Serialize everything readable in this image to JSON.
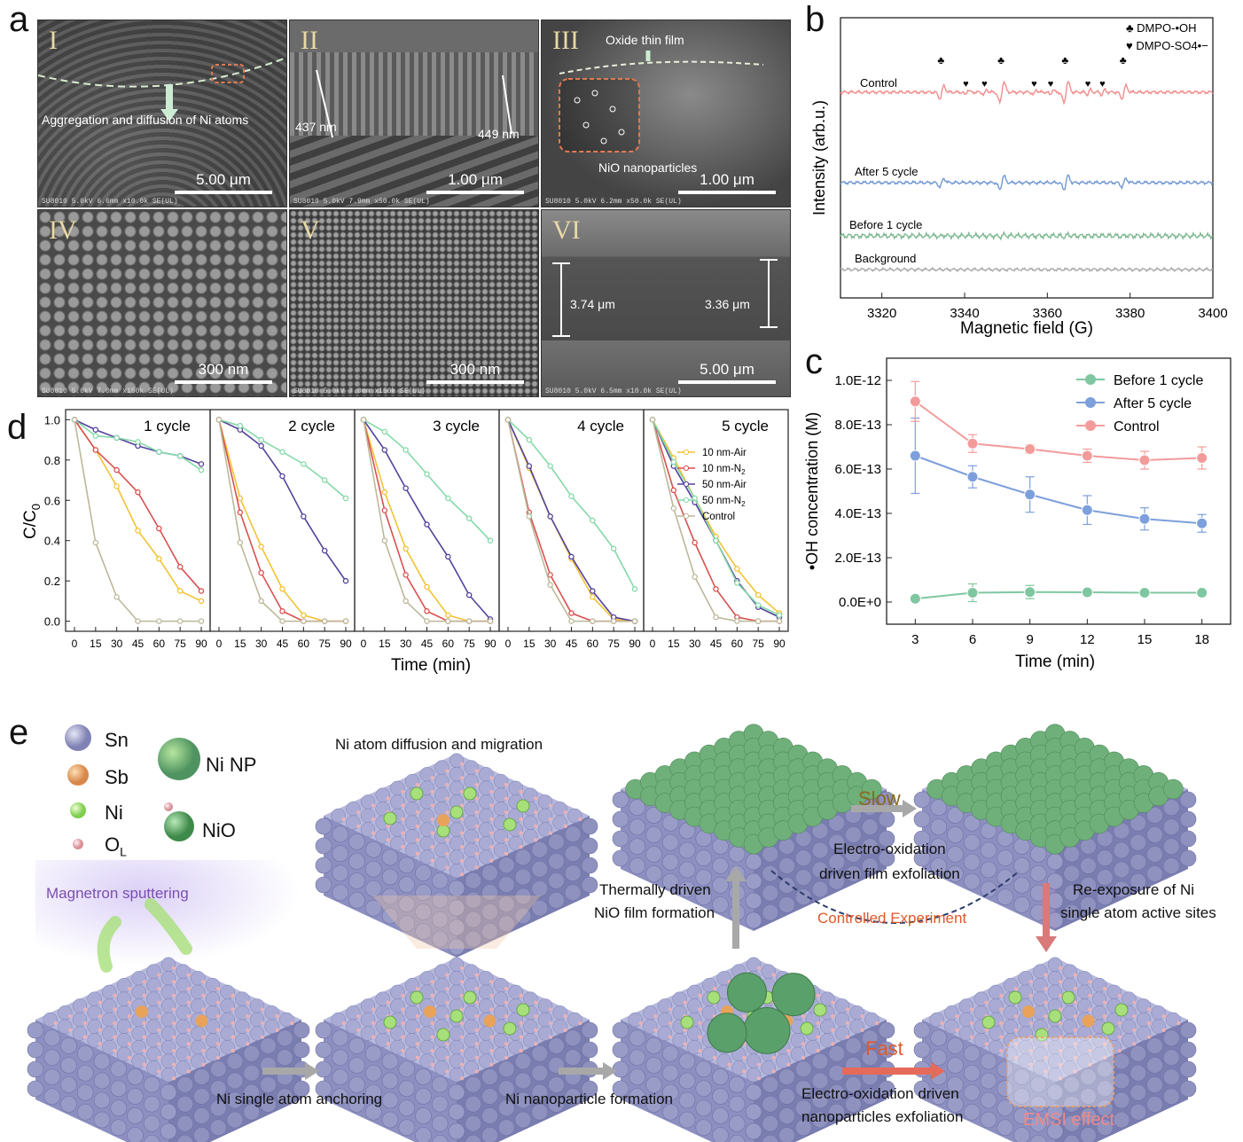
{
  "panels": {
    "a": "a",
    "b": "b",
    "c": "c",
    "d": "d",
    "e": "e"
  },
  "panel_a": {
    "tiles": [
      {
        "roman": "I",
        "scale": "5.00 μm",
        "meta": "SU8010 5.0kV 6.6mm x10.0k SE(UL)",
        "meta_right": "5.00um"
      },
      {
        "roman": "II",
        "scale": "1.00 μm",
        "meta": "SU8010 5.0kV 7.9mm x50.0k SE(UL)",
        "meta_right": "1.00um"
      },
      {
        "roman": "III",
        "scale": "1.00 μm",
        "meta": "SU8010 5.0kV 6.2mm x50.0k SE(UL)",
        "meta_right": "1.00um"
      },
      {
        "roman": "IV",
        "scale": "300 nm",
        "meta": "SU8010 5.0kV 7.0mm x150k SE(UL)",
        "meta_right": "300nm"
      },
      {
        "roman": "V",
        "scale": "300 nm",
        "meta": "SU8010 5.0kV 7.0mm x150k SE(UL)",
        "meta_right": "300nm"
      },
      {
        "roman": "VI",
        "scale": "5.00 μm",
        "meta": "SU8010 5.0kV 6.5mm x10.0k SE(UL)",
        "meta_right": "5.00um"
      }
    ],
    "annotations": {
      "agg": "Aggregation and diffusion of Ni atoms",
      "t437": "437 nm",
      "t449": "449 nm",
      "oxide": "Oxide thin film",
      "nio": "NiO nanoparticles",
      "t374": "3.74 μm",
      "t336": "3.36 μm"
    }
  },
  "chart_data": [
    {
      "id": "b",
      "type": "line",
      "xlabel": "Magnetic field (G)",
      "ylabel": "Intensity (arb.u.)",
      "xlim": [
        3310,
        3400
      ],
      "xticks": [
        3320,
        3340,
        3360,
        3380,
        3400
      ],
      "legend": [
        {
          "symbol": "♣",
          "label": "DMPO-•OH"
        },
        {
          "symbol": "♥",
          "label": "DMPO-SO4•−"
        }
      ],
      "series": [
        {
          "name": "Control",
          "color": "#f08c8c",
          "amp": 1.0,
          "so4": true
        },
        {
          "name": "After 5 cycle",
          "color": "#6f98d2",
          "amp": 0.65,
          "so4": false
        },
        {
          "name": "Before 1 cycle",
          "color": "#7fb890",
          "amp": 0.06,
          "so4": false
        },
        {
          "name": "Background",
          "color": "#aaaaaa",
          "amp": 0.0,
          "so4": false
        }
      ],
      "oh_peaks": [
        3334.5,
        3349,
        3364.5,
        3378.5
      ],
      "so4_peaks": [
        3340.5,
        3345,
        3357,
        3361,
        3370,
        3373.5
      ]
    },
    {
      "id": "c",
      "type": "line",
      "xlabel": "Time (min)",
      "ylabel": "•OH concentration (M)",
      "x": [
        3,
        6,
        9,
        12,
        15,
        18
      ],
      "ylim": [
        -1e-13,
        1.1e-12
      ],
      "yticks": [
        "0.0E+0",
        "2.0E-13",
        "4.0E-13",
        "6.0E-13",
        "8.0E-13",
        "1.0E-12"
      ],
      "legend_position": "top-right",
      "series": [
        {
          "name": "Before 1 cycle",
          "color": "#7fc7a0",
          "values": [
            1.5e-14,
            4.2e-14,
            4.5e-14,
            4.4e-14,
            4.2e-14,
            4.2e-14
          ],
          "err": [
            1e-14,
            4e-14,
            3e-14,
            1.5e-14,
            1e-14,
            1e-14
          ]
        },
        {
          "name": "After 5 cycle",
          "color": "#7d9fdb",
          "values": [
            6.6e-13,
            5.65e-13,
            4.85e-13,
            4.15e-13,
            3.75e-13,
            3.55e-13
          ],
          "err": [
            1.7e-13,
            5e-14,
            8e-14,
            6.5e-14,
            5e-14,
            4e-14
          ]
        },
        {
          "name": "Control",
          "color": "#f39b9b",
          "values": [
            9.05e-13,
            7.15e-13,
            6.9e-13,
            6.6e-13,
            6.4e-13,
            6.5e-13
          ],
          "err": [
            9e-14,
            4e-14,
            2e-14,
            3e-14,
            4e-14,
            5e-14
          ]
        }
      ]
    },
    {
      "id": "d",
      "type": "line",
      "xlabel": "Time (min)",
      "ylabel": "C/C0",
      "x": [
        0,
        15,
        30,
        45,
        60,
        75,
        90
      ],
      "ylim": [
        -0.05,
        1.05
      ],
      "yticks": [
        "0.0",
        "0.2",
        "0.4",
        "0.6",
        "0.8",
        "1.0"
      ],
      "xticks": [
        "0",
        "15",
        "30",
        "45",
        "60",
        "75",
        "90"
      ],
      "legend": [
        "10 nm-Air",
        "10 nm-N2",
        "50 nm-Air",
        "50 nm-N2",
        "Control"
      ],
      "colors": [
        "#f2c233",
        "#d9504f",
        "#54419c",
        "#84d9a8",
        "#bcb89a"
      ],
      "subplots": [
        {
          "title": "1 cycle",
          "series": [
            [
              1,
              0.85,
              0.67,
              0.45,
              0.31,
              0.15,
              0.1
            ],
            [
              1,
              0.85,
              0.75,
              0.64,
              0.46,
              0.27,
              0.15
            ],
            [
              1,
              0.95,
              0.91,
              0.87,
              0.84,
              0.82,
              0.78
            ],
            [
              1,
              0.92,
              0.91,
              0.89,
              0.84,
              0.82,
              0.75
            ],
            [
              1,
              0.39,
              0.12,
              0.0,
              0.0,
              0.0,
              0.0
            ]
          ]
        },
        {
          "title": "2 cycle",
          "series": [
            [
              1,
              0.61,
              0.37,
              0.16,
              0.03,
              0.0,
              0.0
            ],
            [
              1,
              0.54,
              0.24,
              0.05,
              0.0,
              0.0,
              0.0
            ],
            [
              1,
              0.95,
              0.87,
              0.72,
              0.52,
              0.35,
              0.2
            ],
            [
              1,
              0.97,
              0.9,
              0.84,
              0.78,
              0.7,
              0.61
            ],
            [
              1,
              0.39,
              0.1,
              0.0,
              0.0,
              0.0,
              0.0
            ]
          ]
        },
        {
          "title": "3 cycle",
          "series": [
            [
              1,
              0.64,
              0.36,
              0.17,
              0.03,
              0.0,
              0.0
            ],
            [
              1,
              0.55,
              0.23,
              0.05,
              0.0,
              0.0,
              0.0
            ],
            [
              1,
              0.85,
              0.66,
              0.48,
              0.32,
              0.13,
              0.01
            ],
            [
              1,
              0.94,
              0.85,
              0.73,
              0.61,
              0.51,
              0.4
            ],
            [
              1,
              0.4,
              0.1,
              0.0,
              0.0,
              0.0,
              0.0
            ]
          ]
        },
        {
          "title": "4 cycle",
          "series": [
            [
              1,
              0.76,
              0.52,
              0.31,
              0.12,
              0.01,
              0.0
            ],
            [
              1,
              0.54,
              0.23,
              0.04,
              0.0,
              0.0,
              0.0
            ],
            [
              1,
              0.77,
              0.52,
              0.32,
              0.15,
              0.02,
              0.0
            ],
            [
              1,
              0.9,
              0.77,
              0.62,
              0.5,
              0.36,
              0.16
            ],
            [
              1,
              0.52,
              0.18,
              0.0,
              0.0,
              0.0,
              0.0
            ]
          ]
        },
        {
          "title": "5 cycle",
          "series": [
            [
              1,
              0.81,
              0.61,
              0.42,
              0.26,
              0.13,
              0.04
            ],
            [
              1,
              0.65,
              0.39,
              0.16,
              0.02,
              0.0,
              0.0
            ],
            [
              1,
              0.77,
              0.59,
              0.4,
              0.2,
              0.07,
              0.02
            ],
            [
              1,
              0.79,
              0.61,
              0.4,
              0.19,
              0.08,
              0.03
            ],
            [
              1,
              0.56,
              0.22,
              0.02,
              0.0,
              0.0,
              0.0
            ]
          ]
        }
      ]
    }
  ],
  "panel_e": {
    "legend": {
      "sn": "Sn",
      "sb": "Sb",
      "ni": "Ni",
      "ol": "O",
      "ol_sub": "L",
      "ninp": "Ni NP",
      "nio": "NiO"
    },
    "colors": {
      "sn": "#9a9cc8",
      "sb": "#e8a25a",
      "ni": "#a7e07a",
      "o": "#e9b2b7",
      "nio": "#4f9a5a",
      "ninp": "#5aa06a"
    },
    "labels": {
      "sputter": "Magnetron sputtering",
      "diffusion": "Ni atom diffusion and migration",
      "anchoring": "Ni single atom anchoring",
      "np_form": "Ni nanoparticle formation",
      "thermal1": "Thermally driven",
      "thermal2": "NiO film formation",
      "slow": "Slow",
      "eo1": "Electro-oxidation",
      "eo2": "driven film exfoliation",
      "controlled": "Controlled Experiment",
      "reexp1": "Re-exposure of Ni",
      "reexp2": "single atom active sites",
      "fast": "Fast",
      "eonp1": "Electro-oxidation driven",
      "eonp2": "nanoparticles exfoliation",
      "emsi": "EMSI effect"
    }
  }
}
